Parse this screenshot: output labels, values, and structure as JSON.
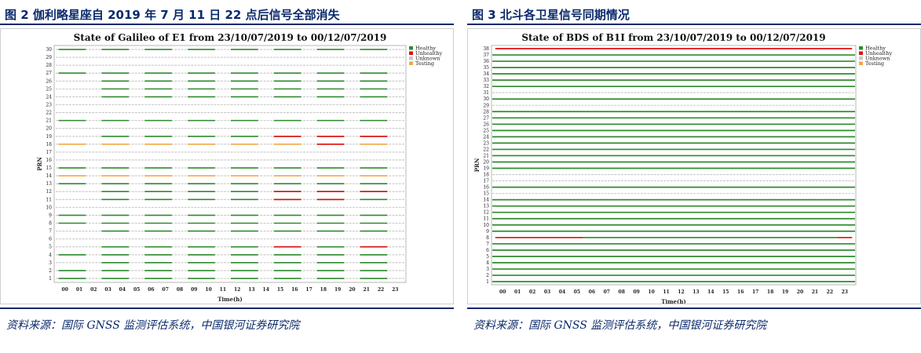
{
  "figures": [
    {
      "caption": "图 2 伽利略星座自 2019 年 7 月 11 日 22 点后信号全部消失",
      "source": "资料来源：国际 GNSS 监测评估系统，中国银河证券研究院"
    },
    {
      "caption": "图 3 北斗各卫星信号同期情况",
      "source": "资料来源：国际 GNSS 监测评估系统，中国银河证券研究院"
    }
  ],
  "colors": {
    "Healthy": "#2e8b2e",
    "Unhealthy": "#e01010",
    "Unknown": "#c8c8c8",
    "Testing": "#f5a742",
    "caption": "#0b2a6b"
  },
  "chart_data": [
    {
      "type": "timeline",
      "title": "State of Galileo of E1 from 23/10/07/2019 to 00/12/07/2019",
      "xlabel": "Time(h)",
      "ylabel": "PRN",
      "x_ticks": [
        "00",
        "01",
        "02",
        "03",
        "04",
        "05",
        "06",
        "07",
        "08",
        "09",
        "10",
        "11",
        "12",
        "13",
        "14",
        "15",
        "16",
        "17",
        "18",
        "19",
        "20",
        "21",
        "22",
        "23"
      ],
      "xlim": [
        0,
        23
      ],
      "y_ticks": [
        1,
        2,
        3,
        4,
        5,
        6,
        7,
        8,
        9,
        10,
        11,
        12,
        13,
        14,
        15,
        16,
        17,
        18,
        19,
        20,
        21,
        22,
        23,
        24,
        25,
        26,
        27,
        28,
        29,
        30
      ],
      "ylim": [
        1,
        30
      ],
      "grid": true,
      "legend": {
        "position": "top-right",
        "entries": [
          "Healthy",
          "Unhealthy",
          "Unknown",
          "Testing"
        ]
      },
      "default_state": "Unknown",
      "active_windows": [
        {
          "start": 0,
          "end": 1
        },
        {
          "start": 3,
          "end": 4
        },
        {
          "start": 6,
          "end": 7
        },
        {
          "start": 9,
          "end": 10
        },
        {
          "start": 12,
          "end": 13
        },
        {
          "start": 15,
          "end": 16
        },
        {
          "start": 18,
          "end": 19
        },
        {
          "start": 21,
          "end": 22
        }
      ],
      "series": [
        {
          "prn": 30,
          "state": "Healthy",
          "windows": [
            0,
            1,
            2,
            3,
            4,
            5,
            6,
            7
          ]
        },
        {
          "prn": 27,
          "state": "Healthy",
          "windows": [
            0,
            1,
            2,
            3,
            4,
            5,
            6,
            7
          ]
        },
        {
          "prn": 26,
          "state": "Healthy",
          "windows": [
            1,
            2,
            3,
            4,
            5,
            6,
            7
          ]
        },
        {
          "prn": 25,
          "state": "Healthy",
          "windows": [
            1,
            2,
            3,
            4,
            5,
            6,
            7
          ]
        },
        {
          "prn": 24,
          "state": "Healthy",
          "windows": [
            1,
            2,
            3,
            4,
            5,
            6,
            7
          ]
        },
        {
          "prn": 21,
          "state": "Healthy",
          "windows": [
            0,
            1,
            2,
            3,
            4,
            5,
            6,
            7
          ]
        },
        {
          "prn": 19,
          "state": "Healthy",
          "windows": [
            1,
            2,
            3,
            4,
            5,
            6,
            7
          ]
        },
        {
          "prn": 18,
          "state": "Testing",
          "windows": [
            0,
            1,
            2,
            3,
            4,
            5,
            6,
            7
          ]
        },
        {
          "prn": 15,
          "state": "Healthy",
          "windows": [
            0,
            1,
            2,
            3,
            4,
            5,
            6,
            7
          ]
        },
        {
          "prn": 14,
          "state": "Testing",
          "windows": [
            0,
            1,
            2,
            3,
            4,
            5,
            6,
            7
          ]
        },
        {
          "prn": 13,
          "state": "Healthy",
          "windows": [
            0,
            1,
            2,
            3,
            4,
            5,
            6,
            7
          ]
        },
        {
          "prn": 12,
          "state": "Healthy",
          "windows": [
            1,
            2,
            3,
            4,
            5,
            6,
            7
          ]
        },
        {
          "prn": 11,
          "state": "Healthy",
          "windows": [
            1,
            2,
            3,
            4,
            5,
            6,
            7
          ]
        },
        {
          "prn": 9,
          "state": "Healthy",
          "windows": [
            0,
            1,
            2,
            3,
            4,
            5,
            6,
            7
          ]
        },
        {
          "prn": 8,
          "state": "Healthy",
          "windows": [
            0,
            1,
            2,
            3,
            4,
            5,
            6,
            7
          ]
        },
        {
          "prn": 7,
          "state": "Healthy",
          "windows": [
            1,
            2,
            3,
            4,
            5,
            6,
            7
          ]
        },
        {
          "prn": 5,
          "state": "Healthy",
          "windows": [
            1,
            2,
            3,
            4,
            5,
            6,
            7
          ]
        },
        {
          "prn": 4,
          "state": "Healthy",
          "windows": [
            0,
            1,
            2,
            3,
            4,
            5,
            6,
            7
          ]
        },
        {
          "prn": 3,
          "state": "Healthy",
          "windows": [
            1,
            2,
            3,
            4,
            5,
            6,
            7
          ]
        },
        {
          "prn": 2,
          "state": "Healthy",
          "windows": [
            0,
            1,
            2,
            3,
            4,
            5,
            6,
            7
          ]
        },
        {
          "prn": 1,
          "state": "Healthy",
          "windows": [
            0,
            1,
            2,
            3,
            4,
            5,
            6,
            7
          ]
        }
      ],
      "unhealthy_marks": [
        {
          "prn": 19,
          "windows": [
            5,
            6,
            7
          ]
        },
        {
          "prn": 18,
          "windows": [
            6
          ]
        },
        {
          "prn": 12,
          "windows": [
            5,
            6,
            7
          ]
        },
        {
          "prn": 11,
          "windows": [
            5,
            6
          ]
        },
        {
          "prn": 5,
          "windows": [
            5,
            7
          ]
        }
      ]
    },
    {
      "type": "timeline",
      "title": "State of BDS of B1I from 23/10/07/2019 to 00/12/07/2019",
      "xlabel": "Time(h)",
      "ylabel": "PRN",
      "x_ticks": [
        "00",
        "01",
        "02",
        "03",
        "04",
        "05",
        "06",
        "07",
        "08",
        "09",
        "10",
        "11",
        "12",
        "13",
        "14",
        "15",
        "16",
        "17",
        "18",
        "19",
        "20",
        "21",
        "22",
        "23"
      ],
      "xlim": [
        0,
        23
      ],
      "y_ticks": [
        1,
        2,
        3,
        4,
        5,
        6,
        7,
        8,
        9,
        10,
        11,
        12,
        13,
        14,
        15,
        16,
        17,
        18,
        19,
        20,
        21,
        22,
        23,
        24,
        25,
        26,
        27,
        28,
        29,
        30,
        31,
        32,
        33,
        34,
        35,
        36,
        37,
        38
      ],
      "ylim": [
        1,
        38
      ],
      "grid": true,
      "legend": {
        "position": "top-right",
        "entries": [
          "Healthy",
          "Unhealthy",
          "Unknown",
          "Testing"
        ]
      },
      "healthy_prns": [
        1,
        2,
        3,
        4,
        5,
        6,
        7,
        9,
        10,
        11,
        12,
        13,
        14,
        16,
        19,
        20,
        21,
        22,
        23,
        24,
        25,
        26,
        27,
        28,
        30,
        32,
        33,
        34,
        35,
        36,
        37
      ],
      "unknown_prns": [
        15,
        17,
        18,
        29,
        31
      ],
      "unhealthy_segments": [
        {
          "prn": 38,
          "start": -0.5,
          "end": 23.5
        },
        {
          "prn": 8,
          "start": -0.5,
          "end": 5.4
        },
        {
          "prn": 8,
          "start": 22.5,
          "end": 23.5
        }
      ]
    }
  ]
}
